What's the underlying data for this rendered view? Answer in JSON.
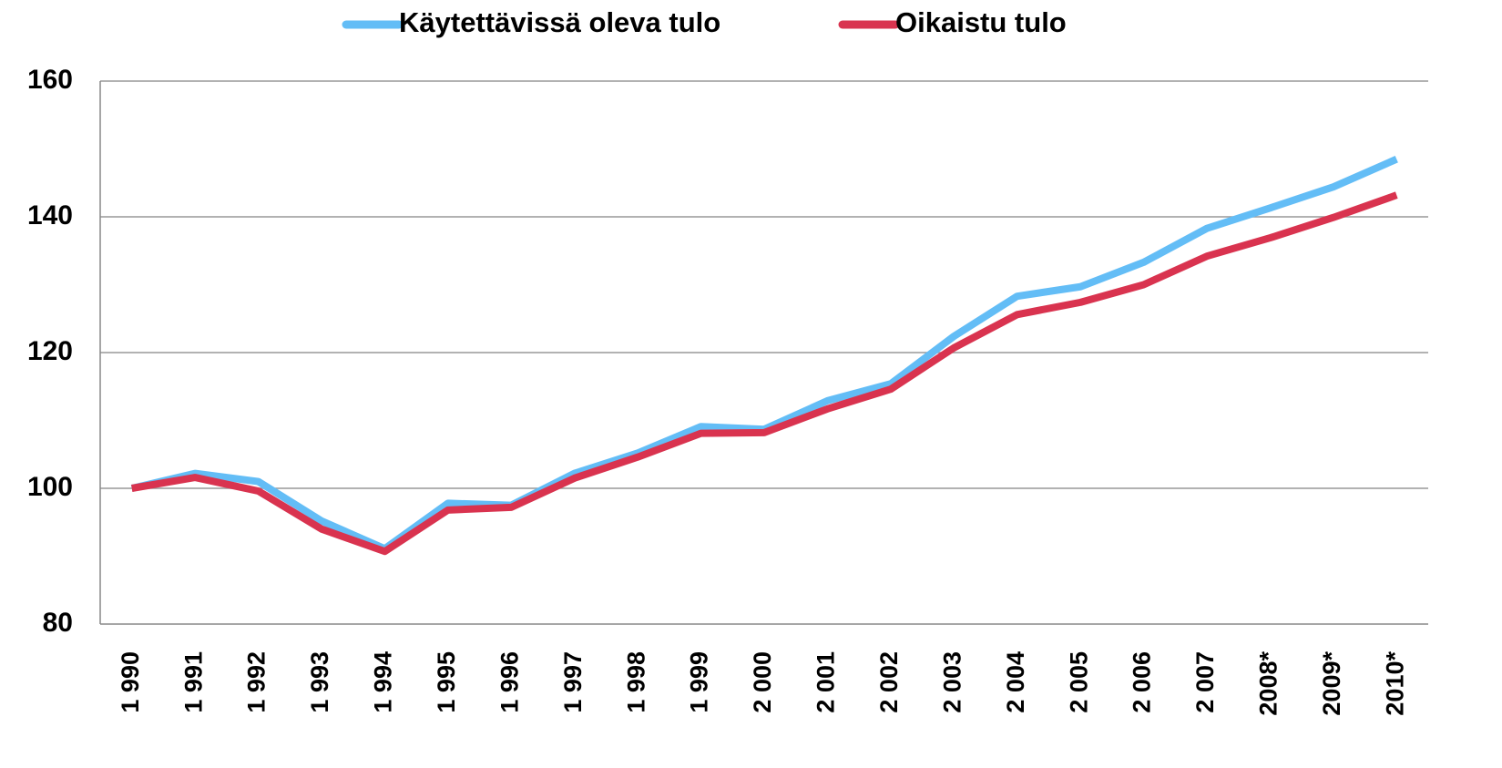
{
  "chart_data": {
    "type": "line",
    "categories": [
      "1 990",
      "1 991",
      "1 992",
      "1 993",
      "1 994",
      "1 995",
      "1 996",
      "1 997",
      "1 998",
      "1 999",
      "2 000",
      "2 001",
      "2 002",
      "2 003",
      "2 004",
      "2 005",
      "2 006",
      "2 007",
      "2008*",
      "2009*",
      "2010*"
    ],
    "series": [
      {
        "name": "Käytettävissä oleva tulo",
        "color": "#63bdf6",
        "values": [
          100,
          102.2,
          101,
          95.2,
          91.1,
          97.8,
          97.5,
          102.2,
          105.2,
          109.1,
          108.7,
          112.9,
          115.4,
          122.4,
          128.3,
          129.7,
          133.3,
          138.3,
          141.3,
          144.4,
          148.5
        ]
      },
      {
        "name": "Oikaistu tulo",
        "color": "#d9334f",
        "values": [
          100,
          101.6,
          99.6,
          94,
          90.7,
          96.8,
          97.2,
          101.5,
          104.6,
          108.1,
          108.2,
          111.7,
          114.6,
          120.7,
          125.6,
          127.4,
          130,
          134.2,
          136.9,
          139.9,
          143.2
        ]
      }
    ],
    "ylim": [
      80,
      160
    ],
    "yticks": [
      80,
      100,
      120,
      140,
      160
    ],
    "grid": true,
    "legend": "top"
  }
}
